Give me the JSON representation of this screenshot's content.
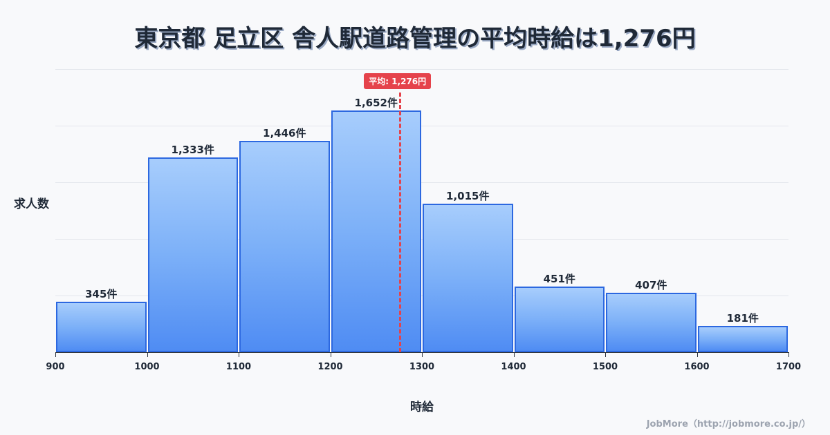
{
  "title": "東京都 足立区 舎人駅道路管理の平均時給は1,276円",
  "mean_badge": "平均: 1,276円",
  "ylabel": "求人数",
  "xlabel": "時給",
  "credit": "JobMore（http://jobmore.co.jp/）",
  "colors": {
    "bar_fill_top": "#a7cdfc",
    "bar_fill_bottom": "#4f8cf3",
    "bar_border": "#2c68e0",
    "mean_line": "#e5434b",
    "background": "#f8f9fb"
  },
  "bins": [
    {
      "from": 900,
      "to": 1000,
      "count": 345,
      "label": "345件"
    },
    {
      "from": 1000,
      "to": 1100,
      "count": 1333,
      "label": "1,333件"
    },
    {
      "from": 1100,
      "to": 1200,
      "count": 1446,
      "label": "1,446件"
    },
    {
      "from": 1200,
      "to": 1300,
      "count": 1652,
      "label": "1,652件"
    },
    {
      "from": 1300,
      "to": 1400,
      "count": 1015,
      "label": "1,015件"
    },
    {
      "from": 1400,
      "to": 1500,
      "count": 451,
      "label": "451件"
    },
    {
      "from": 1500,
      "to": 1600,
      "count": 407,
      "label": "407件"
    },
    {
      "from": 1600,
      "to": 1700,
      "count": 181,
      "label": "181件"
    }
  ],
  "xticks": [
    "900",
    "1000",
    "1100",
    "1200",
    "1300",
    "1400",
    "1500",
    "1600",
    "1700"
  ],
  "chart_data": {
    "type": "bar",
    "title": "東京都 足立区 舎人駅道路管理の平均時給は1,276円",
    "xlabel": "時給",
    "ylabel": "求人数",
    "categories": [
      "900-1000",
      "1000-1100",
      "1100-1200",
      "1200-1300",
      "1300-1400",
      "1400-1500",
      "1500-1600",
      "1600-1700"
    ],
    "values": [
      345,
      1333,
      1446,
      1652,
      1015,
      451,
      407,
      181
    ],
    "xlim": [
      900,
      1700
    ],
    "x_ticks": [
      900,
      1000,
      1100,
      1200,
      1300,
      1400,
      1500,
      1600,
      1700
    ],
    "grid": true,
    "annotations": [
      {
        "type": "vline",
        "x": 1276,
        "label": "平均: 1,276円",
        "style": "dashed",
        "color": "#e5434b"
      }
    ],
    "legend": null
  }
}
